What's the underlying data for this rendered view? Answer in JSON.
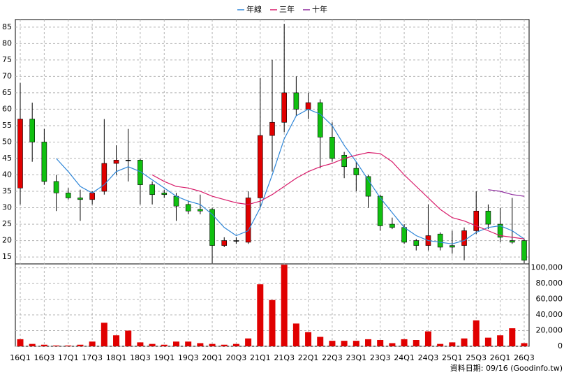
{
  "chart_data": [
    {
      "type": "candlestick",
      "categories": [
        "16Q1",
        null,
        "16Q3",
        null,
        "17Q1",
        null,
        "17Q3",
        null,
        "18Q1",
        null,
        "18Q3",
        null,
        "19Q1",
        null,
        "19Q3",
        null,
        "20Q1",
        null,
        "20Q3",
        null,
        "21Q1",
        null,
        "21Q3",
        null,
        "22Q1",
        null,
        "22Q3",
        null,
        "23Q1",
        null,
        "23Q3",
        null,
        "24Q1",
        null,
        "24Q3",
        null,
        "25Q1",
        null,
        "25Q3",
        null,
        "26Q1",
        null,
        "26Q3"
      ],
      "open": [
        36,
        57,
        50,
        38,
        34.5,
        33,
        32.5,
        35,
        43.5,
        44.5,
        44.5,
        37,
        34.5,
        33.5,
        31,
        29.5,
        29.5,
        18.5,
        20,
        19.5,
        33,
        52,
        56,
        65,
        60,
        62,
        51.5,
        46,
        42,
        39.5,
        33.5,
        25,
        24,
        20,
        18.5,
        22,
        18.5,
        18.5,
        23,
        29,
        25,
        20,
        20
      ],
      "high": [
        68,
        62,
        54,
        40,
        36,
        35.5,
        35,
        57,
        49,
        54,
        45,
        38,
        35.5,
        34.5,
        32,
        34,
        30,
        21,
        21,
        35,
        69.5,
        75,
        86,
        70,
        65,
        63,
        56,
        47,
        44,
        40,
        34,
        27,
        25,
        20.5,
        31,
        22.5,
        23,
        24,
        35,
        31,
        30,
        33,
        20.5
      ],
      "low": [
        31,
        44,
        37,
        29,
        32.5,
        26,
        31,
        34,
        40,
        38,
        31,
        31,
        33,
        26,
        28,
        28,
        13,
        18,
        19,
        19,
        30,
        41,
        53,
        58,
        57,
        42,
        44,
        39,
        35,
        30,
        23,
        23.5,
        19,
        17,
        17,
        17,
        16,
        14,
        22,
        23.5,
        19.5,
        19,
        13
      ],
      "close": [
        57,
        50,
        38,
        34.5,
        33,
        32.5,
        34.5,
        43.5,
        44.5,
        44.5,
        37,
        34,
        34,
        30.5,
        29,
        29,
        18.5,
        20,
        20,
        33,
        52,
        56,
        65,
        60,
        62,
        51.5,
        45,
        42.5,
        40,
        33.5,
        24.5,
        24,
        19.5,
        18.5,
        21.5,
        18,
        18,
        23,
        29,
        25,
        21,
        19.5,
        14
      ],
      "up_color": "#e00000",
      "down_color": "#10c010",
      "series": [
        {
          "name": "年線",
          "color": "#2f86d8",
          "values": [
            null,
            null,
            null,
            45,
            41,
            36.5,
            34.5,
            37,
            41,
            42.5,
            41,
            38.5,
            36,
            33.5,
            32,
            31,
            28,
            24,
            21.5,
            23,
            30,
            40,
            51,
            58,
            60,
            58.5,
            55,
            49,
            44,
            38.5,
            33,
            28.5,
            24,
            21.5,
            20,
            19.5,
            19,
            20,
            22.5,
            24,
            24.5,
            23,
            20.5
          ]
        },
        {
          "name": "三年",
          "color": "#d81b6a",
          "values": [
            null,
            null,
            null,
            null,
            null,
            null,
            null,
            null,
            null,
            null,
            null,
            40,
            38,
            36.5,
            36,
            35,
            33.5,
            32.5,
            31.5,
            31,
            32,
            34,
            36.5,
            39,
            41,
            42.5,
            43.5,
            45,
            46,
            46.8,
            46.5,
            44,
            40,
            36.5,
            33,
            29.5,
            27,
            26,
            24.5,
            23,
            21.5,
            21,
            20.5
          ]
        },
        {
          "name": "十年",
          "color": "#8e2a9e",
          "values": [
            null,
            null,
            null,
            null,
            null,
            null,
            null,
            null,
            null,
            null,
            null,
            null,
            null,
            null,
            null,
            null,
            null,
            null,
            null,
            null,
            null,
            null,
            null,
            null,
            null,
            null,
            null,
            null,
            null,
            null,
            null,
            null,
            null,
            null,
            null,
            null,
            null,
            null,
            null,
            35.5,
            35,
            34,
            33.5
          ]
        }
      ],
      "ylim": [
        12.9,
        87.3
      ],
      "yticks": [
        15,
        20,
        25,
        30,
        35,
        40,
        45,
        50,
        55,
        60,
        65,
        70,
        75,
        80,
        85
      ],
      "grid": true,
      "note": "資料日期: 09/16 (Goodinfo.tw)"
    },
    {
      "type": "bar",
      "color": "#e00000",
      "values": [
        9000,
        3000,
        2000,
        1000,
        1000,
        2000,
        6000,
        30000,
        14000,
        20000,
        5000,
        3000,
        2000,
        6000,
        6000,
        4000,
        3000,
        2000,
        3000,
        10000,
        79000,
        59000,
        104000,
        29000,
        18000,
        12000,
        7000,
        7000,
        7000,
        9000,
        8000,
        4000,
        9000,
        8000,
        19000,
        3000,
        5000,
        10000,
        33000,
        11000,
        14000,
        23000,
        4000
      ],
      "ylim": [
        0,
        105000
      ],
      "yticks": [
        0,
        {
          "value": 20000,
          "label": "20,000"
        },
        {
          "value": 40000,
          "label": "40,000"
        },
        {
          "value": 60000,
          "label": "60,000"
        },
        {
          "value": 80000,
          "label": "80,000"
        },
        {
          "value": 100000,
          "label": "100,000"
        }
      ],
      "grid": true
    }
  ]
}
